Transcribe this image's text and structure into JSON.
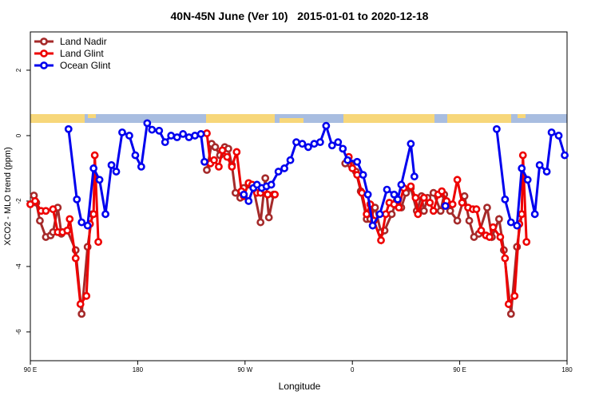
{
  "chart_data": {
    "type": "line",
    "title": "40N-45N June (Ver 10)   2015-01-01 to 2020-12-18",
    "x_label": "Longitude",
    "y_label": "XCO2 - MLO trend (ppm)",
    "xlim": [
      90,
      540
    ],
    "ylim": [
      -6.88,
      3.17
    ],
    "xticks": [
      {
        "value": 90,
        "label": "90 E"
      },
      {
        "value": 180,
        "label": "180"
      },
      {
        "value": 270,
        "label": "90 W"
      },
      {
        "value": 360,
        "label": "0"
      },
      {
        "value": 450,
        "label": "90 E"
      },
      {
        "value": 540,
        "label": "180"
      }
    ],
    "yticks": [
      -6,
      -4,
      -2,
      0,
      2
    ],
    "legend": "top-left",
    "series": [
      {
        "name": "Land Nadir",
        "color": "#a52a2a",
        "x": [
          93,
          95,
          98,
          103,
          107,
          109,
          113,
          116,
          121,
          128,
          133,
          138,
          142,
          null,
          238,
          242,
          245,
          249,
          253,
          256,
          259,
          262,
          266,
          269,
          273,
          277,
          283,
          287,
          290,
          294,
          null,
          354,
          359,
          363,
          367,
          372,
          375,
          379,
          384,
          387,
          393,
          397,
          401,
          405,
          409,
          414,
          418,
          420,
          423,
          428,
          434,
          437,
          442,
          448,
          454,
          458,
          462,
          466,
          473,
          477,
          483,
          487,
          493,
          498,
          502
        ],
        "values": [
          -1.83,
          -2.05,
          -2.6,
          -3.1,
          -3.05,
          -2.95,
          -2.2,
          -3.0,
          -2.9,
          -3.5,
          -5.45,
          -3.4,
          -2.4,
          null,
          -1.05,
          -0.25,
          -0.35,
          -0.6,
          -0.35,
          -0.4,
          -0.9,
          -1.75,
          -1.9,
          -1.6,
          -1.5,
          -1.6,
          -2.65,
          -1.3,
          -2.5,
          -1.8,
          null,
          -0.85,
          -0.9,
          -1.1,
          -1.7,
          -2.55,
          -2.55,
          -2.2,
          -2.95,
          -2.9,
          -2.4,
          -2.0,
          -2.2,
          -1.75,
          -1.6,
          -2.3,
          -1.85,
          -2.3,
          -1.9,
          -1.75,
          -2.3,
          -1.8,
          -2.3,
          -2.6,
          -1.85,
          -2.6,
          -3.1,
          -3.0,
          -2.2,
          -3.1,
          -2.55,
          -3.5,
          -5.45,
          -3.4,
          -2.4
        ]
      },
      {
        "name": "Land Glint",
        "color": "#ee0000",
        "x": [
          90,
          94,
          99,
          103,
          109,
          113,
          117,
          121,
          123,
          128,
          132,
          137,
          140,
          143,
          144,
          147,
          null,
          238,
          241,
          244,
          248,
          251,
          255,
          259,
          263,
          267,
          269,
          273,
          276,
          280,
          283,
          286,
          289,
          295,
          null,
          357,
          360,
          364,
          368,
          372,
          375,
          378,
          384,
          388,
          391,
          395,
          399,
          403,
          409,
          413,
          415,
          420,
          425,
          428,
          432,
          435,
          439,
          444,
          448,
          452,
          457,
          461,
          464,
          468,
          472,
          475,
          478,
          484,
          488,
          491,
          496,
          500,
          502,
          503,
          506
        ],
        "values": [
          -2.1,
          -2.0,
          -2.3,
          -2.3,
          -2.25,
          -2.95,
          -2.95,
          -2.9,
          -2.55,
          -3.75,
          -5.15,
          -4.9,
          -2.7,
          -2.4,
          -0.6,
          -3.25,
          null,
          0.07,
          -0.85,
          -0.75,
          -0.95,
          -0.45,
          -0.65,
          -0.95,
          -0.5,
          -1.7,
          -1.85,
          -1.45,
          -1.5,
          -1.75,
          -1.75,
          -1.65,
          -1.8,
          -1.8,
          null,
          -0.65,
          -1.0,
          -1.2,
          -1.75,
          -2.4,
          -2.1,
          -2.6,
          -3.2,
          -2.4,
          -2.05,
          -2.1,
          -2.2,
          -1.6,
          -1.55,
          -1.9,
          -2.4,
          -1.9,
          -2.05,
          -2.3,
          -1.8,
          -1.7,
          -2.0,
          -2.1,
          -1.35,
          -2.05,
          -2.2,
          -2.25,
          -2.25,
          -2.9,
          -3.05,
          -3.1,
          -2.8,
          -3.1,
          -3.75,
          -5.15,
          -4.9,
          -2.7,
          -2.4,
          -0.6,
          -3.25
        ]
      },
      {
        "name": "Ocean Glint",
        "color": "#0000ee",
        "x": [
          122,
          129,
          133,
          138,
          143,
          148,
          153,
          158,
          162,
          167,
          173,
          178,
          183,
          188,
          192,
          198,
          203,
          208,
          213,
          218,
          223,
          228,
          233,
          236,
          null,
          269,
          273,
          277,
          280,
          284,
          288,
          292,
          298,
          303,
          308,
          313,
          318,
          323,
          328,
          333,
          338,
          343,
          348,
          352,
          356,
          364,
          369,
          373,
          377,
          383,
          389,
          395,
          398,
          401,
          409,
          412,
          null,
          438,
          null,
          481,
          488,
          493,
          498,
          502,
          507,
          513,
          517,
          523,
          527,
          533,
          538
        ],
        "values": [
          0.2,
          -1.95,
          -2.65,
          -2.75,
          -1.0,
          -1.35,
          -2.4,
          -0.9,
          -1.1,
          0.1,
          0.0,
          -0.6,
          -0.95,
          0.38,
          0.18,
          0.15,
          -0.2,
          0.0,
          -0.05,
          0.05,
          -0.05,
          0.0,
          0.05,
          -0.8,
          null,
          -1.8,
          -2.0,
          -1.6,
          -1.5,
          -1.6,
          -1.55,
          -1.5,
          -1.1,
          -1.0,
          -0.75,
          -0.2,
          -0.25,
          -0.35,
          -0.25,
          -0.2,
          0.3,
          -0.3,
          -0.2,
          -0.4,
          -0.75,
          -0.8,
          -1.2,
          -1.8,
          -2.75,
          -2.4,
          -1.65,
          -1.8,
          -1.95,
          -1.5,
          -0.25,
          -1.25,
          null,
          -2.15,
          null,
          0.2,
          -1.95,
          -2.65,
          -2.75,
          -1.0,
          -1.35,
          -2.4,
          -0.9,
          -1.1,
          0.1,
          0.0,
          -0.6
        ]
      }
    ]
  }
}
